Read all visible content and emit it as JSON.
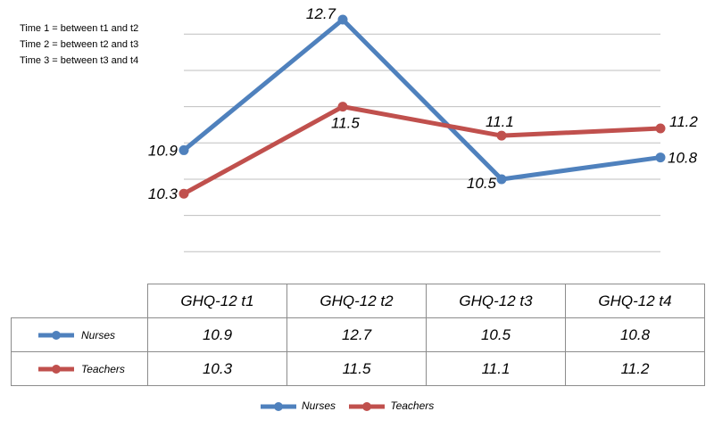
{
  "notes": [
    "Time 1 = between t1 and t2",
    "Time 2 = between t2 and t3",
    "Time 3 = between t3 and t4"
  ],
  "colors": {
    "nurses": "#4f81bd",
    "teachers": "#c0504d",
    "grid": "#bfbfbf"
  },
  "chart_data": {
    "type": "line",
    "categories": [
      "GHQ-12 t1",
      "GHQ-12 t2",
      "GHQ-12 t3",
      "GHQ-12 t4"
    ],
    "series": [
      {
        "name": "Nurses",
        "values": [
          10.9,
          12.7,
          10.5,
          10.8
        ]
      },
      {
        "name": "Teachers",
        "values": [
          10.3,
          11.5,
          11.1,
          11.2
        ]
      }
    ],
    "ylim": [
      9.5,
      12.5
    ],
    "grid": true,
    "legend": "bottom",
    "data_table": true
  }
}
